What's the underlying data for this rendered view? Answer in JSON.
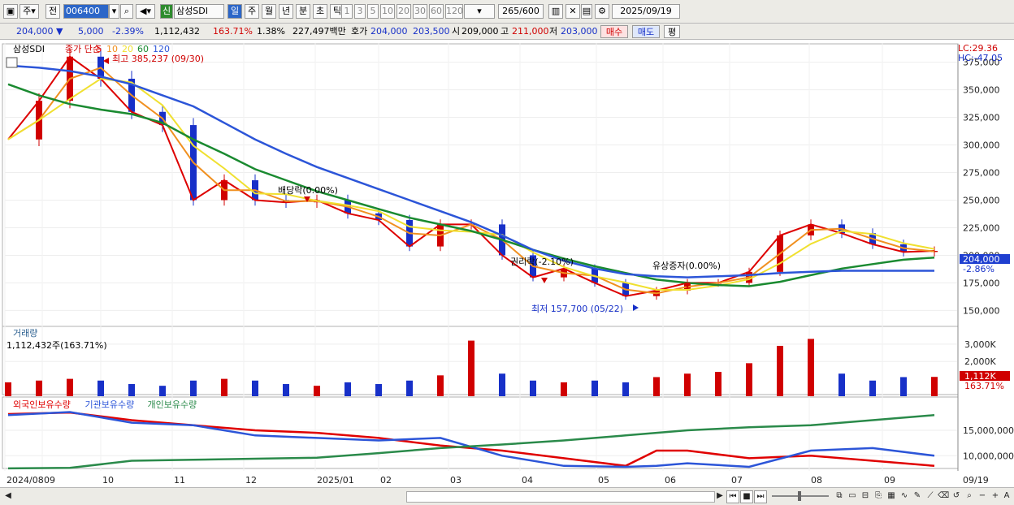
{
  "toolbar": {
    "mode": "주",
    "prev_label": "전",
    "code": "006400",
    "credit_badge": "신",
    "stock_name": "삼성SDI",
    "periods": [
      "일",
      "주",
      "월",
      "년",
      "분",
      "초",
      "틱"
    ],
    "active_period": "일",
    "intervals": [
      "1",
      "3",
      "5",
      "10",
      "20",
      "30",
      "60",
      "120"
    ],
    "count": "265",
    "count_total": "600",
    "date": "2025/09/19"
  },
  "info": {
    "price": "204,000",
    "change": "5,000",
    "change_pct": "-2.39%",
    "volume": "1,112,432",
    "volume_ratio": "163.71%",
    "turnover": "1.38%",
    "amount": "227,497백만",
    "quote_label": "호가",
    "bid": "204,000",
    "ask": "203,500",
    "open_label": "시",
    "open": "209,000",
    "high_label": "고",
    "high": "211,000",
    "low_label": "저",
    "low": "203,000",
    "buy_label": "매수",
    "sell_label": "매도",
    "avg_label": "평"
  },
  "price_panel": {
    "legend_name": "삼성SDI",
    "legend_series": [
      "종가 단순",
      "5",
      "10",
      "20",
      "60",
      "120"
    ],
    "lc": "LC:29.36",
    "hc": "HC:-47.05",
    "current_tag": "204,000",
    "current_pct": "-2.86%",
    "high_note": "최고 385,237 (09/30)",
    "low_note": "최저 157,700 (05/22)",
    "event_dividend": "배당락(0.00%)",
    "event_rights": "권리락(-2.10%)",
    "event_capital": "유상증자(0.00%)",
    "y_ticks": [
      "375,000",
      "350,000",
      "325,000",
      "300,000",
      "275,000",
      "250,000",
      "225,000",
      "200,000",
      "175,000",
      "150,000"
    ]
  },
  "volume_panel": {
    "title": "거래량",
    "value": "1,112,432주(163.71%)",
    "y_ticks": [
      "3,000K",
      "2,000K"
    ],
    "tag": "1,112K",
    "tag_pct": "163.71%"
  },
  "holding_panel": {
    "legend": [
      "외국인보유수량",
      "기관보유수량",
      "개인보유수량"
    ],
    "y_ticks": [
      "15,000,000",
      "10,000,000"
    ]
  },
  "x_axis": {
    "labels": [
      "2024/08",
      "09",
      "10",
      "11",
      "12",
      "2025/01",
      "02",
      "03",
      "04",
      "05",
      "06",
      "07",
      "08",
      "09"
    ],
    "end_label": "09/19"
  },
  "chart_data": [
    {
      "type": "candlestick",
      "title": "삼성SDI",
      "x_unit": "weeks (2024/08 → 2025/09/19)",
      "ylim": [
        140000,
        385000
      ],
      "x": [
        0,
        2,
        4,
        6,
        8,
        10,
        12,
        14,
        16,
        18,
        20,
        22,
        24,
        26,
        28,
        30,
        32,
        34,
        36,
        38,
        40,
        42,
        44,
        46,
        48,
        50,
        52,
        54,
        56,
        58,
        60
      ],
      "close": [
        305000,
        340000,
        380000,
        360000,
        330000,
        318000,
        250000,
        268000,
        250000,
        248000,
        250000,
        238000,
        232000,
        208000,
        228000,
        228000,
        200000,
        180000,
        188000,
        175000,
        163000,
        168000,
        175000,
        175000,
        185000,
        218000,
        228000,
        220000,
        210000,
        203000,
        204000
      ],
      "series": [
        {
          "name": "5",
          "color": "#dd0000"
        },
        {
          "name": "10",
          "color": "#f09020"
        },
        {
          "name": "20",
          "color": "#f0e030"
        },
        {
          "name": "60",
          "color": "#1a8a30"
        },
        {
          "name": "120",
          "color": "#2c55d8"
        }
      ],
      "ma60": [
        355000,
        345000,
        337000,
        332000,
        328000,
        320000,
        305000,
        292000,
        278000,
        268000,
        258000,
        250000,
        242000,
        234000,
        228000,
        222000,
        214000,
        205000,
        197000,
        190000,
        184000,
        178000,
        175000,
        173000,
        172000,
        176000,
        182000,
        188000,
        192000,
        196000,
        198000
      ],
      "ma120": [
        372000,
        370000,
        367000,
        362000,
        355000,
        345000,
        335000,
        320000,
        305000,
        292000,
        280000,
        270000,
        260000,
        250000,
        240000,
        230000,
        218000,
        205000,
        195000,
        188000,
        183000,
        181000,
        180000,
        181000,
        182000,
        184000,
        185000,
        186000,
        186000,
        186000,
        186000
      ]
    },
    {
      "type": "bar",
      "title": "거래량",
      "x": [
        0,
        2,
        4,
        6,
        8,
        10,
        12,
        14,
        16,
        18,
        20,
        22,
        24,
        26,
        28,
        30,
        32,
        34,
        36,
        38,
        40,
        42,
        44,
        46,
        48,
        50,
        52,
        54,
        56,
        58,
        60
      ],
      "values": [
        800,
        900,
        1000,
        900,
        700,
        600,
        900,
        1000,
        900,
        700,
        600,
        800,
        700,
        900,
        1200,
        3200,
        1300,
        900,
        800,
        900,
        800,
        1100,
        1300,
        1400,
        1900,
        2900,
        3300,
        1300,
        900,
        1100,
        1112
      ]
    },
    {
      "type": "line",
      "title": "보유수량",
      "x": [
        0,
        4,
        8,
        12,
        16,
        20,
        24,
        28,
        32,
        36,
        40,
        42,
        44,
        48,
        52,
        56,
        60
      ],
      "series": [
        {
          "name": "외국인보유수량",
          "color": "#e00000",
          "values": [
            18200000,
            18500000,
            17000000,
            16000000,
            15000000,
            14500000,
            13500000,
            12000000,
            11000000,
            9500000,
            8000000,
            11000000,
            11000000,
            9500000,
            10000000,
            9000000,
            8000000
          ]
        },
        {
          "name": "기관보유수량",
          "color": "#2c55d8",
          "values": [
            18000000,
            18600000,
            16500000,
            16000000,
            14000000,
            13500000,
            13000000,
            13500000,
            10000000,
            8000000,
            7800000,
            8000000,
            8500000,
            7800000,
            11000000,
            11500000,
            10000000
          ]
        },
        {
          "name": "개인보유수량",
          "color": "#2a8a4a",
          "values": [
            7500000,
            7600000,
            9000000,
            9200000,
            9400000,
            9600000,
            10500000,
            11500000,
            12200000,
            13000000,
            14000000,
            14500000,
            15000000,
            15600000,
            16000000,
            17000000,
            18000000
          ]
        }
      ]
    }
  ]
}
